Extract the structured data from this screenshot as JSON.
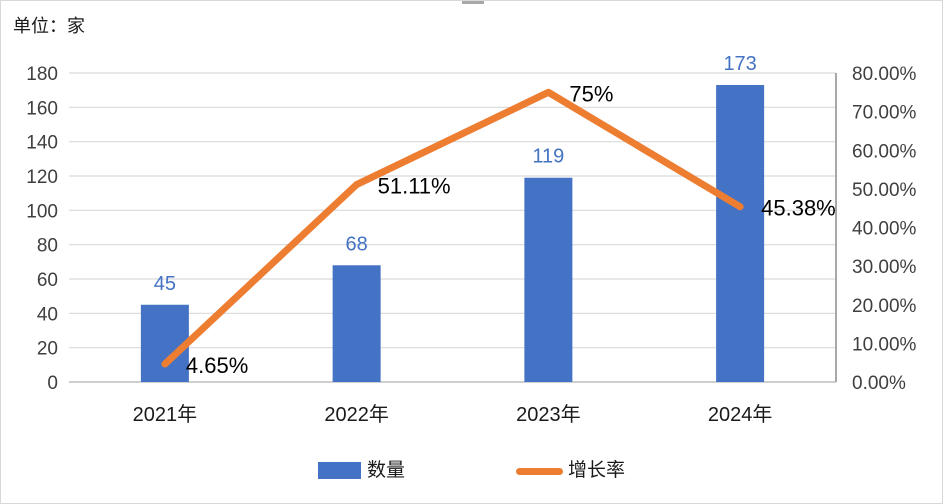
{
  "unit_label": "单位：家",
  "legend": {
    "items": [
      {
        "label": "数量",
        "type": "bar",
        "color": "#4472C4"
      },
      {
        "label": "增长率",
        "type": "line",
        "color": "#ED7D31"
      }
    ]
  },
  "colors": {
    "bar": "#4472C4",
    "line": "#ED7D31",
    "bar_label": "#4472C4",
    "pct_label": "#000000",
    "grid": "#D9D9D9",
    "axis_bottom": "#BFBFBF",
    "axis_right": "#9E9E9E",
    "tick_text": "#3F3F3F",
    "category_text": "#1A1A1A"
  },
  "chart_data": {
    "type": "bar+line combo",
    "categories": [
      "2021年",
      "2022年",
      "2023年",
      "2024年"
    ],
    "series": [
      {
        "name": "数量",
        "type": "bar",
        "axis": "left",
        "values": [
          45,
          68,
          119,
          173
        ],
        "labels": [
          "45",
          "68",
          "119",
          "173"
        ],
        "color": "#4472C4"
      },
      {
        "name": "增长率",
        "type": "line",
        "axis": "right",
        "values": [
          4.65,
          51.11,
          75,
          45.38
        ],
        "labels": [
          "4.65%",
          "51.11%",
          "75%",
          "45.38%"
        ],
        "color": "#ED7D31"
      }
    ],
    "left_axis": {
      "min": 0,
      "max": 180,
      "step": 20,
      "ticks": [
        "0",
        "20",
        "40",
        "60",
        "80",
        "100",
        "120",
        "140",
        "160",
        "180"
      ]
    },
    "right_axis": {
      "min": 0,
      "max": 80,
      "step": 10,
      "ticks": [
        "0.00%",
        "10.00%",
        "20.00%",
        "30.00%",
        "40.00%",
        "50.00%",
        "60.00%",
        "70.00%",
        "80.00%"
      ]
    },
    "grid": true,
    "legend_position": "bottom",
    "unit_note": "单位：家"
  }
}
